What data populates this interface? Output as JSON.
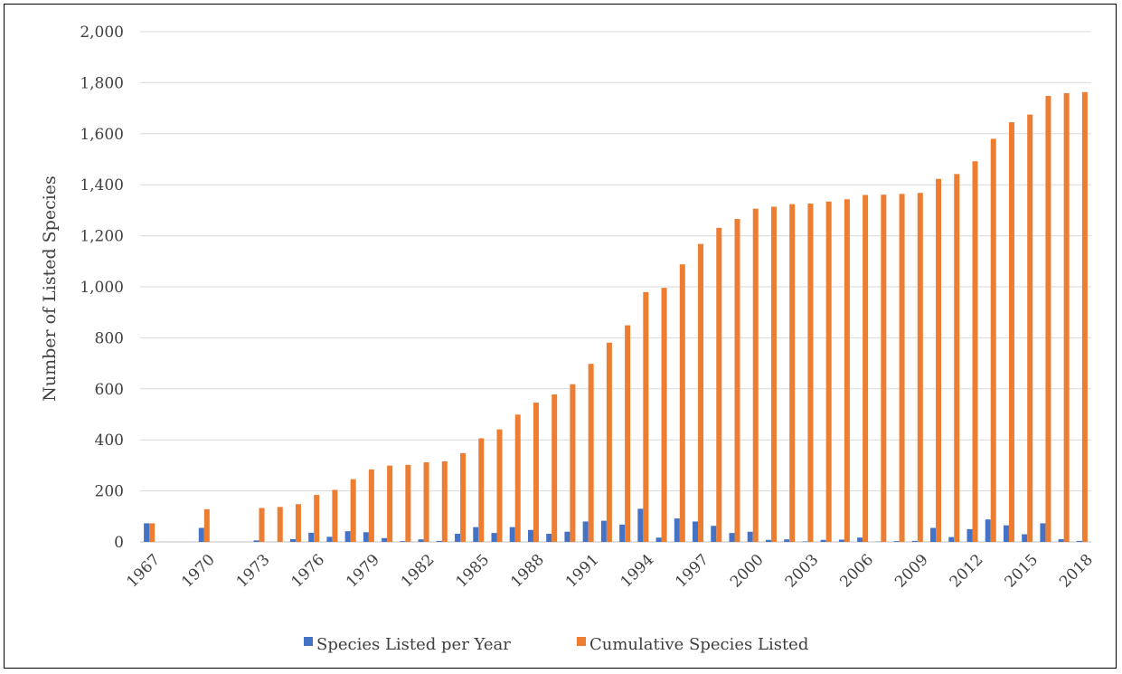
{
  "chart_data": {
    "type": "bar",
    "title": "",
    "xlabel": "",
    "ylabel": "Number of Listed Species",
    "ylim": [
      0,
      2000
    ],
    "yticks": [
      0,
      200,
      400,
      600,
      800,
      1000,
      1200,
      1400,
      1600,
      1800,
      2000
    ],
    "ytick_labels": [
      "0",
      "200",
      "400",
      "600",
      "800",
      "1,000",
      "1,200",
      "1,400",
      "1,600",
      "1,800",
      "2,000"
    ],
    "grid": true,
    "legend_position": "bottom",
    "categories": [
      "1967",
      "1968",
      "1969",
      "1970",
      "1971",
      "1972",
      "1973",
      "1974",
      "1975",
      "1976",
      "1977",
      "1978",
      "1979",
      "1980",
      "1981",
      "1982",
      "1983",
      "1984",
      "1985",
      "1986",
      "1987",
      "1988",
      "1989",
      "1990",
      "1991",
      "1992",
      "1993",
      "1994",
      "1995",
      "1996",
      "1997",
      "1998",
      "1999",
      "2000",
      "2001",
      "2002",
      "2003",
      "2004",
      "2005",
      "2006",
      "2007",
      "2008",
      "2009",
      "2010",
      "2011",
      "2012",
      "2013",
      "2014",
      "2015",
      "2016",
      "2017",
      "2018"
    ],
    "x_tick_labels": [
      "1967",
      "1970",
      "1973",
      "1976",
      "1979",
      "1982",
      "1985",
      "1988",
      "1991",
      "1994",
      "1997",
      "2000",
      "2003",
      "2006",
      "2009",
      "2012",
      "2015",
      "2018"
    ],
    "series": [
      {
        "name": "Species Listed per Year",
        "color": "#4472C4",
        "values": [
          73,
          0,
          0,
          55,
          0,
          0,
          6,
          0,
          11,
          36,
          20,
          42,
          38,
          15,
          3,
          10,
          4,
          32,
          58,
          35,
          58,
          47,
          32,
          40,
          80,
          83,
          68,
          130,
          17,
          92,
          80,
          63,
          35,
          40,
          8,
          10,
          2,
          8,
          9,
          17,
          1,
          3,
          4,
          55,
          19,
          50,
          88,
          65,
          30,
          73,
          11,
          4
        ]
      },
      {
        "name": "Cumulative Species Listed",
        "color": "#ED7D31",
        "values": [
          73,
          0,
          0,
          128,
          0,
          0,
          133,
          137,
          148,
          184,
          204,
          246,
          284,
          299,
          302,
          312,
          316,
          348,
          406,
          441,
          499,
          546,
          578,
          618,
          698,
          781,
          849,
          979,
          996,
          1088,
          1168,
          1231,
          1266,
          1306,
          1314,
          1324,
          1326,
          1334,
          1343,
          1360,
          1361,
          1364,
          1368,
          1423,
          1442,
          1492,
          1580,
          1645,
          1675,
          1748,
          1759,
          1763
        ]
      }
    ]
  }
}
